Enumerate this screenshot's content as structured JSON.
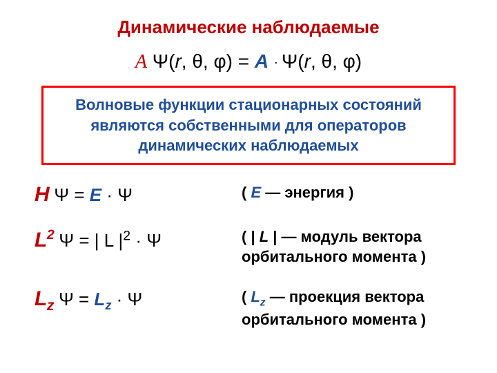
{
  "colors": {
    "red": "#c00000",
    "blue": "#1f4e9c",
    "black": "#000000",
    "box_border": "#ff0000"
  },
  "title": "Динамические наблюдаемые",
  "main_eq": {
    "op": "A",
    "psi_args": "Ψ(r, θ, φ)",
    "eq": "  =  ",
    "eig": "A",
    "dot": " · ",
    "psi_args2": "Ψ(r, θ, φ)"
  },
  "box_text": "Волновые функции стационарных состояний являются собственными для операторов динамических наблюдаемых",
  "rows": [
    {
      "op_html": "H",
      "eq": " Ψ   =   ",
      "eig": "E",
      "tail": "   ·   Ψ",
      "desc_pre": "( ",
      "desc_sym": "E",
      "desc_post": "  —   энергия )"
    },
    {
      "op_html": "L2",
      "eq": " Ψ   =  | L |",
      "eig": "",
      "tail": "  ·  Ψ",
      "desc_pre": "( | ",
      "desc_sym": "L",
      "desc_post": " |   —   модуль вектора орбитального момента )",
      "sq": "2"
    },
    {
      "op_html": "Lz",
      "eq": " Ψ   =   ",
      "eig": "L",
      "sub": "z",
      "tail": "   ·   Ψ",
      "desc_pre": "( ",
      "desc_sym": "L",
      "desc_sub": "z",
      "desc_post": " —   проекция вектора орбитального момента )"
    }
  ]
}
